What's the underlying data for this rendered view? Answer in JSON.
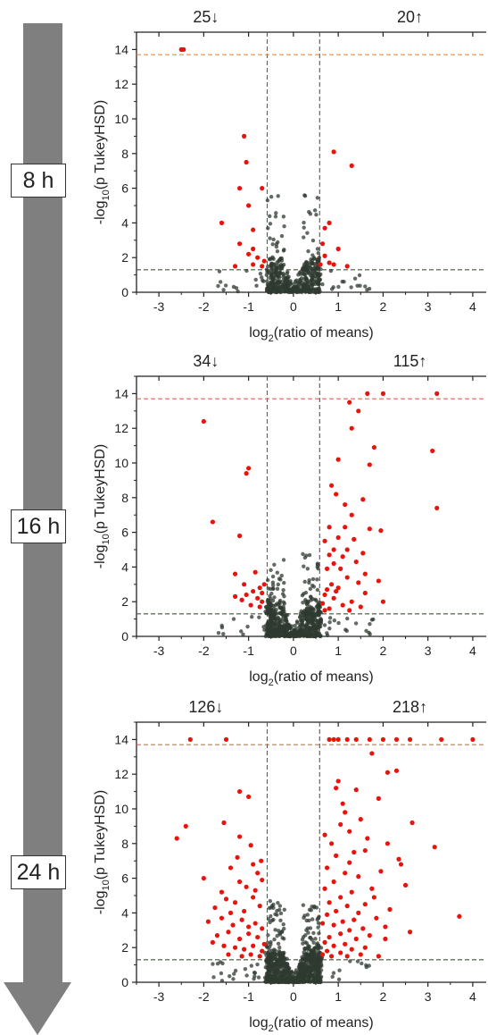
{
  "timeline": {
    "labels": [
      "8 h",
      "16 h",
      "24 h"
    ],
    "arrow_color": "#7f7f7f"
  },
  "colors": {
    "significant": "#e8130c",
    "nonsignificant": "#2f3a30",
    "line_down": "#3c6e3c",
    "line_up": "#555555",
    "line_p": "#3a5a3a",
    "line_cap": "#f08a3c"
  },
  "chart_data": [
    {
      "type": "scatter",
      "time": "8 h",
      "count_down": "25",
      "count_up": "20",
      "arrow_down": "↓",
      "arrow_up": "↑",
      "xlabel_main": "log",
      "xlabel_sub": "2",
      "xlabel_tail": "(ratio of means)",
      "ylabel_main": "-log",
      "ylabel_sub": "10",
      "ylabel_tail": "(p TukeyHSD)",
      "xlim": [
        -3.5,
        4.3
      ],
      "ylim": [
        0,
        15
      ],
      "xticks": [
        -3,
        -2,
        -1,
        0,
        1,
        2,
        3,
        4
      ],
      "yticks": [
        0,
        2,
        4,
        6,
        8,
        10,
        12,
        14
      ],
      "thresholds": {
        "fc_down": -0.585,
        "fc_up": 0.585,
        "p": 1.3,
        "cap": 13.7
      },
      "cap_color": "#f08a3c",
      "sig_points": [
        [
          -2.5,
          14
        ],
        [
          -2.45,
          14
        ],
        [
          -1.1,
          9
        ],
        [
          -1.05,
          7.5
        ],
        [
          -1.2,
          6
        ],
        [
          -0.7,
          6
        ],
        [
          -1,
          5
        ],
        [
          -1.6,
          4
        ],
        [
          -0.9,
          3.6
        ],
        [
          -1.2,
          2.8
        ],
        [
          -0.9,
          2.5
        ],
        [
          -1,
          2.2
        ],
        [
          -0.8,
          2
        ],
        [
          -0.65,
          1.8
        ],
        [
          -1.3,
          1.5
        ],
        [
          -0.9,
          1.6
        ],
        [
          -0.7,
          1.5
        ],
        [
          0.9,
          8.1
        ],
        [
          1.3,
          7.3
        ],
        [
          0.8,
          4
        ],
        [
          0.7,
          3.7
        ],
        [
          1,
          2.5
        ],
        [
          0.65,
          2.8
        ],
        [
          0.7,
          2.1
        ],
        [
          0.8,
          1.7
        ],
        [
          0.9,
          1.6
        ],
        [
          1.2,
          1.5
        ],
        [
          0.6,
          1.6
        ]
      ]
    },
    {
      "type": "scatter",
      "time": "16 h",
      "count_down": "34",
      "count_up": "115",
      "arrow_down": "↓",
      "arrow_up": "↑",
      "xlabel_main": "log",
      "xlabel_sub": "2",
      "xlabel_tail": "(ratio of means)",
      "ylabel_main": "-log",
      "ylabel_sub": "10",
      "ylabel_tail": "(p TukeyHSD)",
      "xlim": [
        -3.5,
        4.3
      ],
      "ylim": [
        0,
        15
      ],
      "xticks": [
        -3,
        -2,
        -1,
        0,
        1,
        2,
        3,
        4
      ],
      "yticks": [
        0,
        2,
        4,
        6,
        8,
        10,
        12,
        14
      ],
      "thresholds": {
        "fc_down": -0.585,
        "fc_up": 0.585,
        "p": 1.3,
        "cap": 13.7
      },
      "cap_color": "#f0604a",
      "sig_points": [
        [
          -2,
          12.4
        ],
        [
          -1,
          9.7
        ],
        [
          -1.05,
          9.4
        ],
        [
          -1.8,
          6.6
        ],
        [
          -1.2,
          5.8
        ],
        [
          -1.3,
          3.6
        ],
        [
          -1.1,
          3
        ],
        [
          -0.85,
          3.7
        ],
        [
          -0.75,
          2.8
        ],
        [
          -1.05,
          2.4
        ],
        [
          -1.3,
          2.3
        ],
        [
          -0.7,
          2.5
        ],
        [
          -0.8,
          2.2
        ],
        [
          -0.9,
          2.6
        ],
        [
          -0.7,
          2
        ],
        [
          -0.65,
          3
        ],
        [
          -1.15,
          2.1
        ],
        [
          -0.95,
          1.8
        ],
        [
          -0.75,
          1.7
        ],
        [
          3.2,
          14
        ],
        [
          2,
          14
        ],
        [
          1.65,
          14
        ],
        [
          1.25,
          13.5
        ],
        [
          1.45,
          13
        ],
        [
          1.3,
          12
        ],
        [
          1.8,
          10.9
        ],
        [
          1.7,
          9.9
        ],
        [
          1,
          10.2
        ],
        [
          3.1,
          10.7
        ],
        [
          0.85,
          8.7
        ],
        [
          0.95,
          8.2
        ],
        [
          1.15,
          7.6
        ],
        [
          1.55,
          7.9
        ],
        [
          1.3,
          7
        ],
        [
          3.2,
          7.4
        ],
        [
          1.7,
          6.2
        ],
        [
          1.95,
          6.1
        ],
        [
          0.8,
          6.3
        ],
        [
          1,
          5.7
        ],
        [
          1.2,
          5
        ],
        [
          0.7,
          5.5
        ],
        [
          1.4,
          4.3
        ],
        [
          1.1,
          4.6
        ],
        [
          0.9,
          4.2
        ],
        [
          0.75,
          3.9
        ],
        [
          1.6,
          3.6
        ],
        [
          1.2,
          3.4
        ],
        [
          0.85,
          3
        ],
        [
          1,
          2.8
        ],
        [
          1.6,
          2.5
        ],
        [
          2,
          2
        ],
        [
          0.7,
          2.4
        ],
        [
          0.9,
          2.2
        ],
        [
          1.3,
          2
        ],
        [
          0.65,
          1.9
        ],
        [
          1.1,
          1.8
        ],
        [
          1.5,
          1.7
        ],
        [
          0.8,
          1.6
        ],
        [
          1.25,
          1.5
        ],
        [
          0.7,
          1.5
        ],
        [
          0.95,
          2.6
        ],
        [
          1.45,
          3.1
        ],
        [
          0.75,
          2.7
        ],
        [
          1.05,
          3.9
        ],
        [
          0.9,
          5
        ],
        [
          1.35,
          5.6
        ],
        [
          1.15,
          6.3
        ],
        [
          0.8,
          4.7
        ],
        [
          1.55,
          4.8
        ],
        [
          1.9,
          3.2
        ]
      ]
    },
    {
      "type": "scatter",
      "time": "24 h",
      "count_down": "126",
      "count_up": "218",
      "arrow_down": "↓",
      "arrow_up": "↑",
      "xlabel_main": "log",
      "xlabel_sub": "2",
      "xlabel_tail": "(ratio of means)",
      "ylabel_main": "-log",
      "ylabel_sub": "10",
      "ylabel_tail": "(p TukeyHSD)",
      "xlim": [
        -3.5,
        4.3
      ],
      "ylim": [
        0,
        15
      ],
      "xticks": [
        -3,
        -2,
        -1,
        0,
        1,
        2,
        3,
        4
      ],
      "yticks": [
        0,
        2,
        4,
        6,
        8,
        10,
        12,
        14
      ],
      "thresholds": {
        "fc_down": -0.585,
        "fc_up": 0.585,
        "p": 1.3,
        "cap": 13.7
      },
      "cap_color": "#f0604a",
      "sig_points": [
        [
          -2.3,
          14
        ],
        [
          -1.5,
          14
        ],
        [
          -2.4,
          9
        ],
        [
          -2.6,
          8.3
        ],
        [
          -1.2,
          11
        ],
        [
          -1,
          10.7
        ],
        [
          -1.55,
          9.2
        ],
        [
          -1.2,
          8.4
        ],
        [
          -0.95,
          7.9
        ],
        [
          -2,
          6
        ],
        [
          -1.4,
          6.6
        ],
        [
          -1.2,
          5.8
        ],
        [
          -1.05,
          5.5
        ],
        [
          -0.8,
          6.3
        ],
        [
          -0.7,
          5.9
        ],
        [
          -1.5,
          4.8
        ],
        [
          -1.3,
          4.6
        ],
        [
          -1.75,
          4.3
        ],
        [
          -0.9,
          4.9
        ],
        [
          -1.1,
          4.1
        ],
        [
          -0.75,
          4.4
        ],
        [
          -1.9,
          3.5
        ],
        [
          -1.6,
          3.7
        ],
        [
          -1.35,
          3.3
        ],
        [
          -1.15,
          3.6
        ],
        [
          -0.85,
          3.4
        ],
        [
          -0.7,
          3.1
        ],
        [
          -1.7,
          2.7
        ],
        [
          -1.45,
          2.9
        ],
        [
          -1.2,
          2.5
        ],
        [
          -1,
          2.8
        ],
        [
          -0.8,
          2.6
        ],
        [
          -0.65,
          2.2
        ],
        [
          -1.55,
          2.1
        ],
        [
          -1.3,
          2
        ],
        [
          -1.1,
          1.9
        ],
        [
          -0.9,
          2.1
        ],
        [
          -0.7,
          1.8
        ],
        [
          -1.45,
          1.6
        ],
        [
          -1.15,
          1.5
        ],
        [
          -0.95,
          1.6
        ],
        [
          -0.75,
          1.5
        ],
        [
          -1.8,
          2.3
        ],
        [
          -1.4,
          4
        ],
        [
          -1.0,
          3.2
        ],
        [
          -0.85,
          5.3
        ],
        [
          -1.25,
          7.2
        ],
        [
          -0.72,
          7.0
        ],
        [
          -1.6,
          5.2
        ],
        [
          -0.9,
          6.8
        ],
        [
          0.8,
          14
        ],
        [
          0.9,
          14
        ],
        [
          1,
          14
        ],
        [
          1.2,
          14
        ],
        [
          1.4,
          14
        ],
        [
          1.7,
          14
        ],
        [
          2,
          14
        ],
        [
          2.3,
          14
        ],
        [
          2.6,
          14
        ],
        [
          3.3,
          14
        ],
        [
          4,
          14
        ],
        [
          1.75,
          13.2
        ],
        [
          1,
          11.6
        ],
        [
          0.95,
          11.2
        ],
        [
          1.4,
          11.1
        ],
        [
          2.1,
          12.1
        ],
        [
          2.3,
          12.2
        ],
        [
          1.9,
          10.6
        ],
        [
          1.1,
          10.3
        ],
        [
          1.5,
          9.4
        ],
        [
          1.05,
          9.1
        ],
        [
          2.65,
          9.2
        ],
        [
          1.25,
          8.7
        ],
        [
          2.1,
          8
        ],
        [
          3.15,
          7.8
        ],
        [
          0.7,
          8.5
        ],
        [
          0.85,
          8
        ],
        [
          1.35,
          7.5
        ],
        [
          1.6,
          7.6
        ],
        [
          2.35,
          7.1
        ],
        [
          1.95,
          6.4
        ],
        [
          0.75,
          6.6
        ],
        [
          1.15,
          6.3
        ],
        [
          1.45,
          6.1
        ],
        [
          2.5,
          5.6
        ],
        [
          1.75,
          5.4
        ],
        [
          0.9,
          5.8
        ],
        [
          1.3,
          5.2
        ],
        [
          0.7,
          5.4
        ],
        [
          1.05,
          4.9
        ],
        [
          1.6,
          4.5
        ],
        [
          2.15,
          4.2
        ],
        [
          1.2,
          4.4
        ],
        [
          0.8,
          4.6
        ],
        [
          1.45,
          4
        ],
        [
          0.95,
          4.1
        ],
        [
          3.7,
          3.8
        ],
        [
          1.85,
          3.7
        ],
        [
          1.35,
          3.6
        ],
        [
          0.75,
          3.9
        ],
        [
          1.1,
          3.5
        ],
        [
          2.05,
          3.2
        ],
        [
          1.55,
          3.1
        ],
        [
          0.9,
          3.3
        ],
        [
          1.25,
          3
        ],
        [
          0.65,
          3.4
        ],
        [
          1.7,
          2.7
        ],
        [
          1.05,
          2.8
        ],
        [
          0.8,
          2.6
        ],
        [
          2.05,
          2.5
        ],
        [
          1.4,
          2.5
        ],
        [
          0.7,
          2.3
        ],
        [
          1.15,
          2.2
        ],
        [
          1.6,
          2.0
        ],
        [
          0.9,
          2.1
        ],
        [
          1.3,
          1.9
        ],
        [
          0.75,
          1.8
        ],
        [
          1.05,
          1.7
        ],
        [
          1.5,
          1.6
        ],
        [
          0.85,
          1.5
        ],
        [
          1.2,
          1.5
        ],
        [
          0.65,
          1.6
        ],
        [
          1.9,
          1.5
        ],
        [
          2.6,
          2.9
        ],
        [
          1.8,
          4.9
        ],
        [
          2.4,
          6.8
        ],
        [
          1.25,
          6.9
        ],
        [
          0.95,
          7.3
        ],
        [
          1.65,
          8.3
        ],
        [
          1.15,
          9.8
        ]
      ]
    }
  ]
}
